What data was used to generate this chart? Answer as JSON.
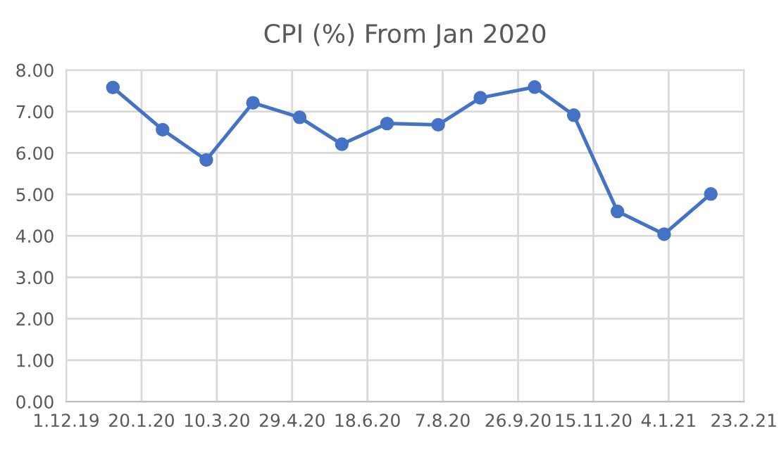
{
  "chart_data": {
    "type": "line",
    "title": "CPI (%) From Jan 2020",
    "x": [
      "2020-01-01",
      "2020-02-03",
      "2020-03-03",
      "2020-04-03",
      "2020-05-04",
      "2020-06-01",
      "2020-07-01",
      "2020-08-04",
      "2020-09-01",
      "2020-10-07",
      "2020-11-02",
      "2020-12-01",
      "2021-01-01",
      "2021-02-01"
    ],
    "series": [
      {
        "color": "#4472c4",
        "values": [
          7.58,
          6.56,
          5.83,
          7.21,
          6.86,
          6.21,
          6.71,
          6.68,
          7.33,
          7.59,
          6.91,
          4.59,
          4.04,
          5.01
        ]
      }
    ],
    "xlim": [
      "2019-12-01",
      "2021-02-23"
    ],
    "xticks": [
      {
        "value": "2019-12-01",
        "label": "1.12.19"
      },
      {
        "value": "2020-01-20",
        "label": "20.1.20"
      },
      {
        "value": "2020-03-10",
        "label": "10.3.20"
      },
      {
        "value": "2020-04-29",
        "label": "29.4.20"
      },
      {
        "value": "2020-06-18",
        "label": "18.6.20"
      },
      {
        "value": "2020-08-07",
        "label": "7.8.20"
      },
      {
        "value": "2020-09-26",
        "label": "26.9.20"
      },
      {
        "value": "2020-11-15",
        "label": "15.11.20"
      },
      {
        "value": "2021-01-04",
        "label": "4.1.21"
      },
      {
        "value": "2021-02-23",
        "label": "23.2.21"
      }
    ],
    "ylim": [
      0,
      8
    ],
    "yticks": [
      {
        "value": 0,
        "label": "0.00"
      },
      {
        "value": 1,
        "label": "1.00"
      },
      {
        "value": 2,
        "label": "2.00"
      },
      {
        "value": 3,
        "label": "3.00"
      },
      {
        "value": 4,
        "label": "4.00"
      },
      {
        "value": 5,
        "label": "5.00"
      },
      {
        "value": 6,
        "label": "6.00"
      },
      {
        "value": 7,
        "label": "7.00"
      },
      {
        "value": 8,
        "label": "8.00"
      }
    ],
    "grid": true,
    "marker": "circle",
    "line_style": "solid"
  }
}
